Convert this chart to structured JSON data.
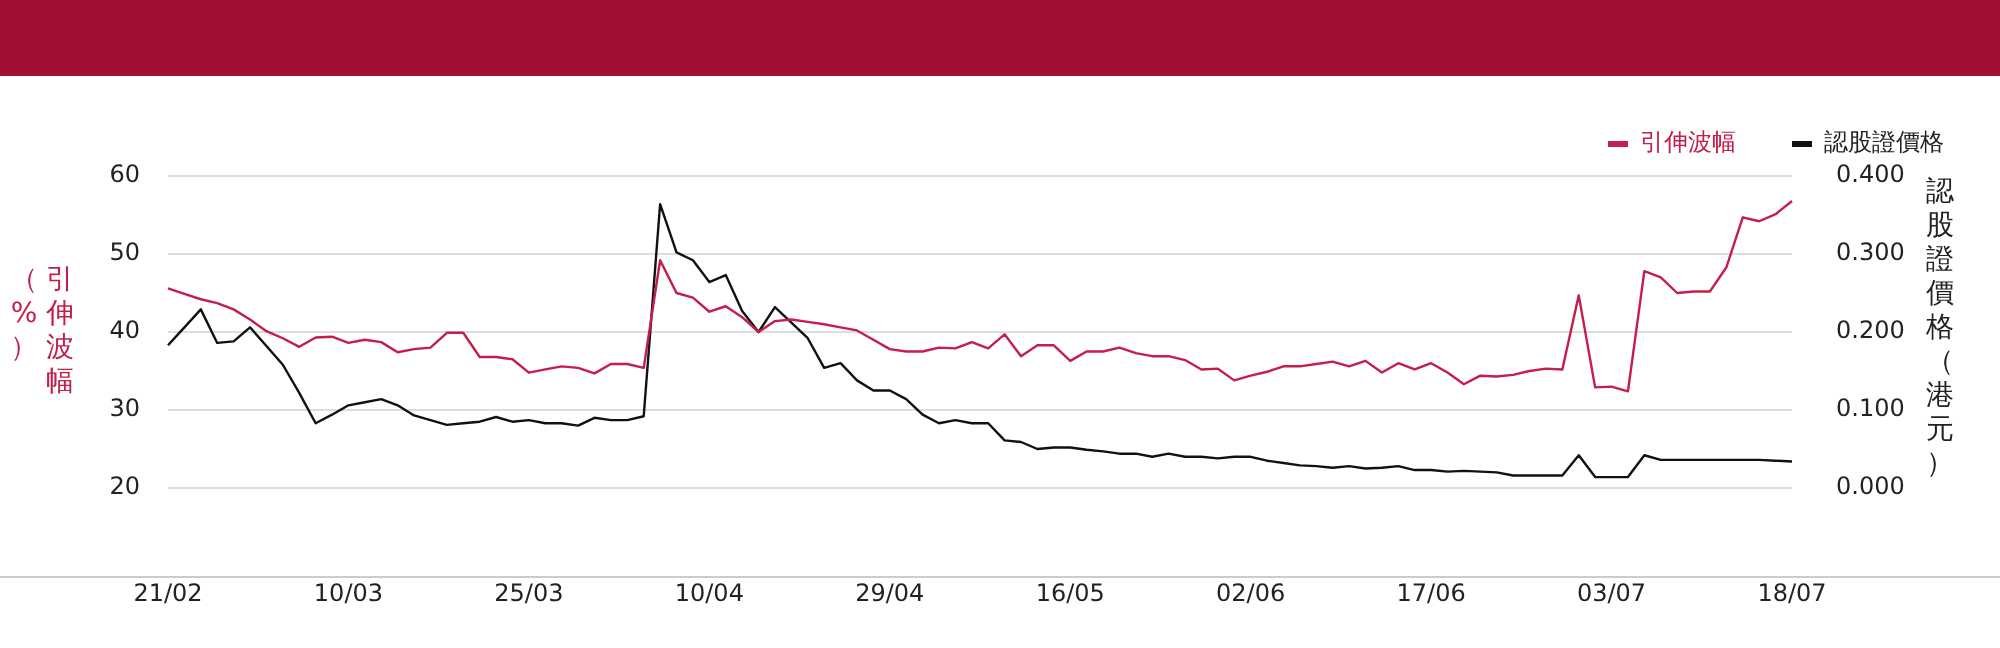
{
  "chart_data": {
    "type": "line",
    "legend": "top right",
    "grid": "y",
    "marker": "none",
    "line_style": "solid",
    "ylabel": "引伸波幅（%）",
    "y2label": "認股證價格（港元）",
    "categories": [
      "21/02",
      null,
      null,
      null,
      null,
      null,
      null,
      null,
      null,
      null,
      null,
      "10/03",
      null,
      null,
      null,
      null,
      null,
      null,
      null,
      null,
      null,
      null,
      "25/03",
      null,
      null,
      null,
      null,
      null,
      null,
      null,
      null,
      null,
      null,
      "10/04",
      null,
      null,
      null,
      null,
      null,
      null,
      null,
      null,
      null,
      null,
      "29/04",
      null,
      null,
      null,
      null,
      null,
      null,
      null,
      null,
      null,
      null,
      "16/05",
      null,
      null,
      null,
      null,
      null,
      null,
      null,
      null,
      null,
      null,
      "02/06",
      null,
      null,
      null,
      null,
      null,
      null,
      null,
      null,
      null,
      null,
      "17/06",
      null,
      null,
      null,
      null,
      null,
      null,
      null,
      null,
      null,
      null,
      "03/07",
      null,
      null,
      null,
      null,
      null,
      null,
      null,
      null,
      null,
      null,
      "18/07"
    ],
    "ylim": [
      20,
      60
    ],
    "yticks": [
      20,
      30,
      40,
      50,
      60
    ],
    "y2lim": [
      0,
      0.4
    ],
    "y2ticks": [
      {
        "value": 0,
        "label": "0.000"
      },
      {
        "value": 0.1,
        "label": "0.100"
      },
      {
        "value": 0.2,
        "label": "0.200"
      },
      {
        "value": 0.3,
        "label": "0.300"
      },
      {
        "value": 0.4,
        "label": "0.400"
      }
    ],
    "series": [
      {
        "name": "引伸波幅",
        "color": "#c41e4a",
        "values": [
          45.6,
          44.9,
          44.2,
          43.7,
          42.9,
          41.6,
          40.1,
          39.2,
          38.1,
          39.3,
          39.4,
          38.6,
          39.0,
          38.7,
          37.4,
          37.8,
          38.0,
          39.9,
          39.9,
          36.8,
          36.8,
          36.5,
          34.8,
          35.2,
          35.6,
          35.4,
          34.7,
          35.9,
          35.9,
          35.4,
          49.2,
          45.0,
          44.4,
          42.6,
          43.3,
          41.9,
          40.0,
          41.4,
          41.6,
          41.3,
          41.0,
          40.6,
          40.2,
          39.0,
          37.8,
          37.5,
          37.5,
          38.0,
          37.9,
          38.7,
          37.9,
          39.7,
          36.9,
          38.3,
          38.3,
          36.3,
          37.5,
          37.5,
          38.0,
          37.3,
          36.9,
          36.9,
          36.4,
          35.2,
          35.3,
          33.8,
          34.4,
          34.9,
          35.6,
          35.6,
          35.9,
          36.2,
          35.6,
          36.3,
          34.8,
          36.0,
          35.2,
          36.0,
          34.8,
          33.3,
          34.4,
          34.3,
          34.5,
          35.0,
          35.3,
          35.2,
          44.7,
          32.9,
          33.0,
          32.4,
          47.8,
          47.0,
          45.0,
          45.2,
          45.2,
          48.3,
          54.7,
          54.2,
          55.1,
          56.8
        ]
      },
      {
        "name": "認股證價格",
        "color": "#111111",
        "axis": "y2",
        "values": [
          0.183,
          0.206,
          0.229,
          0.186,
          0.188,
          0.206,
          0.182,
          0.158,
          0.122,
          0.083,
          0.094,
          0.106,
          0.11,
          0.114,
          0.106,
          0.093,
          0.087,
          0.081,
          0.083,
          0.085,
          0.091,
          0.085,
          0.087,
          0.083,
          0.083,
          0.08,
          0.09,
          0.087,
          0.087,
          0.092,
          0.364,
          0.302,
          0.292,
          0.264,
          0.273,
          0.227,
          0.2,
          0.232,
          0.212,
          0.192,
          0.154,
          0.16,
          0.138,
          0.125,
          0.125,
          0.114,
          0.094,
          0.083,
          0.087,
          0.083,
          0.083,
          0.061,
          0.059,
          0.05,
          0.052,
          0.052,
          0.049,
          0.047,
          0.044,
          0.044,
          0.04,
          0.044,
          0.04,
          0.04,
          0.038,
          0.04,
          0.04,
          0.035,
          0.032,
          0.029,
          0.028,
          0.026,
          0.028,
          0.025,
          0.026,
          0.028,
          0.023,
          0.023,
          0.021,
          0.022,
          0.021,
          0.02,
          0.016,
          0.016,
          0.016,
          0.016,
          0.042,
          0.014,
          0.014,
          0.014,
          0.042,
          0.036,
          0.036,
          0.036,
          0.036,
          0.036,
          0.036,
          0.036,
          0.035,
          0.034
        ]
      }
    ]
  }
}
